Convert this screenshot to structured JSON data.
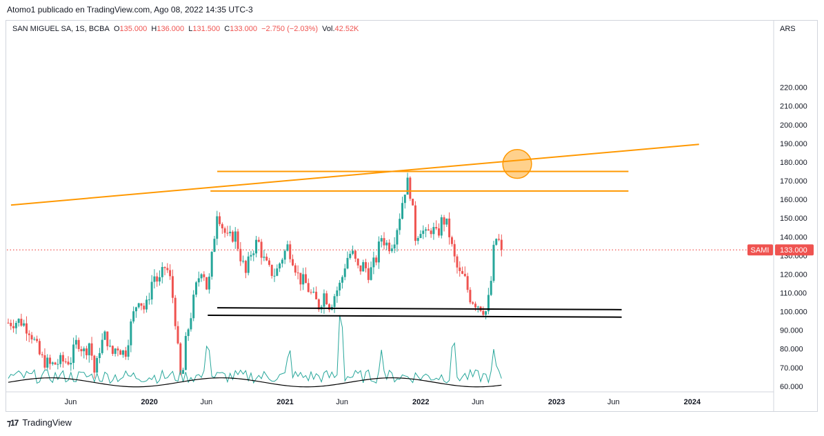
{
  "header": {
    "credit": "Atomo1 publicado en TradingView.com, Ago 08, 2022 14:35 UTC-3"
  },
  "legend": {
    "symbol": "SAN MIGUEL SA, 1S, BCBA",
    "open_label": "O",
    "open": "135.000",
    "high_label": "H",
    "high": "136.000",
    "low_label": "L",
    "low": "131.500",
    "close_label": "C",
    "close": "133.000",
    "change": "−2.750 (−2.03%)",
    "volume_label": "Vol.",
    "volume": "42.52K"
  },
  "footer": {
    "brand": "TradingView"
  },
  "chart_data": {
    "type": "candlestick",
    "currency": "ARS",
    "last_price_tag": {
      "symbol": "SAMI",
      "value": "133.000"
    },
    "ylim": [
      57,
      252
    ],
    "y_ticks": [
      "220.000",
      "210.000",
      "200.000",
      "190.000",
      "180.000",
      "170.000",
      "160.000",
      "150.000",
      "140.000",
      "130.000",
      "120.000",
      "110.000",
      "100.000",
      "90.000",
      "80.000",
      "70.000",
      "60.000"
    ],
    "x_ticks": [
      {
        "label": "Jun",
        "t": 2019.42
      },
      {
        "label": "2020",
        "t": 2020.0
      },
      {
        "label": "Jun",
        "t": 2020.42
      },
      {
        "label": "2021",
        "t": 2021.0
      },
      {
        "label": "Jun",
        "t": 2021.42
      },
      {
        "label": "2022",
        "t": 2022.0
      },
      {
        "label": "Jun",
        "t": 2022.42
      },
      {
        "label": "2023",
        "t": 2023.0
      },
      {
        "label": "Jun",
        "t": 2023.42
      },
      {
        "label": "2024",
        "t": 2024.0
      }
    ],
    "xlim": [
      2018.95,
      2024.6
    ],
    "last_price": 133,
    "price_path": [
      {
        "t": 2018.96,
        "p": 94
      },
      {
        "t": 2019.05,
        "p": 95
      },
      {
        "t": 2019.12,
        "p": 90
      },
      {
        "t": 2019.2,
        "p": 75
      },
      {
        "t": 2019.27,
        "p": 71
      },
      {
        "t": 2019.34,
        "p": 73
      },
      {
        "t": 2019.42,
        "p": 74
      },
      {
        "t": 2019.47,
        "p": 85
      },
      {
        "t": 2019.52,
        "p": 78
      },
      {
        "t": 2019.56,
        "p": 84
      },
      {
        "t": 2019.6,
        "p": 65
      },
      {
        "t": 2019.63,
        "p": 80
      },
      {
        "t": 2019.68,
        "p": 88
      },
      {
        "t": 2019.72,
        "p": 76
      },
      {
        "t": 2019.76,
        "p": 82
      },
      {
        "t": 2019.82,
        "p": 77
      },
      {
        "t": 2019.87,
        "p": 95
      },
      {
        "t": 2019.92,
        "p": 108
      },
      {
        "t": 2019.97,
        "p": 100
      },
      {
        "t": 2020.03,
        "p": 120
      },
      {
        "t": 2020.07,
        "p": 115
      },
      {
        "t": 2020.12,
        "p": 125
      },
      {
        "t": 2020.16,
        "p": 115
      },
      {
        "t": 2020.2,
        "p": 90
      },
      {
        "t": 2020.22,
        "p": 68
      },
      {
        "t": 2020.24,
        "p": 62
      },
      {
        "t": 2020.27,
        "p": 85
      },
      {
        "t": 2020.31,
        "p": 100
      },
      {
        "t": 2020.35,
        "p": 115
      },
      {
        "t": 2020.39,
        "p": 125
      },
      {
        "t": 2020.43,
        "p": 110
      },
      {
        "t": 2020.47,
        "p": 135
      },
      {
        "t": 2020.5,
        "p": 155
      },
      {
        "t": 2020.54,
        "p": 145
      },
      {
        "t": 2020.58,
        "p": 138
      },
      {
        "t": 2020.63,
        "p": 142
      },
      {
        "t": 2020.67,
        "p": 130
      },
      {
        "t": 2020.71,
        "p": 120
      },
      {
        "t": 2020.75,
        "p": 132
      },
      {
        "t": 2020.8,
        "p": 138
      },
      {
        "t": 2020.84,
        "p": 128
      },
      {
        "t": 2020.88,
        "p": 122
      },
      {
        "t": 2020.93,
        "p": 120
      },
      {
        "t": 2020.97,
        "p": 128
      },
      {
        "t": 2021.02,
        "p": 135
      },
      {
        "t": 2021.06,
        "p": 128
      },
      {
        "t": 2021.1,
        "p": 118
      },
      {
        "t": 2021.15,
        "p": 115
      },
      {
        "t": 2021.2,
        "p": 108
      },
      {
        "t": 2021.25,
        "p": 103
      },
      {
        "t": 2021.29,
        "p": 110
      },
      {
        "t": 2021.33,
        "p": 103
      },
      {
        "t": 2021.37,
        "p": 110
      },
      {
        "t": 2021.41,
        "p": 115
      },
      {
        "t": 2021.45,
        "p": 128
      },
      {
        "t": 2021.49,
        "p": 132
      },
      {
        "t": 2021.54,
        "p": 122
      },
      {
        "t": 2021.58,
        "p": 125
      },
      {
        "t": 2021.62,
        "p": 120
      },
      {
        "t": 2021.67,
        "p": 128
      },
      {
        "t": 2021.71,
        "p": 140
      },
      {
        "t": 2021.76,
        "p": 135
      },
      {
        "t": 2021.8,
        "p": 138
      },
      {
        "t": 2021.84,
        "p": 150
      },
      {
        "t": 2021.88,
        "p": 165
      },
      {
        "t": 2021.91,
        "p": 170
      },
      {
        "t": 2021.93,
        "p": 160
      },
      {
        "t": 2021.96,
        "p": 140
      },
      {
        "t": 2022.0,
        "p": 145
      },
      {
        "t": 2022.04,
        "p": 140
      },
      {
        "t": 2022.08,
        "p": 145
      },
      {
        "t": 2022.12,
        "p": 140
      },
      {
        "t": 2022.16,
        "p": 150
      },
      {
        "t": 2022.2,
        "p": 145
      },
      {
        "t": 2022.24,
        "p": 130
      },
      {
        "t": 2022.28,
        "p": 120
      },
      {
        "t": 2022.32,
        "p": 118
      },
      {
        "t": 2022.36,
        "p": 108
      },
      {
        "t": 2022.4,
        "p": 105
      },
      {
        "t": 2022.44,
        "p": 103
      },
      {
        "t": 2022.48,
        "p": 100
      },
      {
        "t": 2022.51,
        "p": 110
      },
      {
        "t": 2022.54,
        "p": 135
      },
      {
        "t": 2022.56,
        "p": 140
      },
      {
        "t": 2022.6,
        "p": 133
      }
    ],
    "volume_peaks": [
      {
        "t": 2020.43,
        "v": 0.55
      },
      {
        "t": 2021.03,
        "v": 0.45
      },
      {
        "t": 2021.41,
        "v": 1.0
      },
      {
        "t": 2021.71,
        "v": 0.35
      },
      {
        "t": 2022.24,
        "v": 0.6
      },
      {
        "t": 2022.54,
        "v": 0.4
      }
    ],
    "annotations": {
      "orange_lines": [
        {
          "from": {
            "t": 2018.98,
            "p": 157
          },
          "to": {
            "t": 2024.05,
            "p": 189.5
          }
        },
        {
          "from": {
            "t": 2020.5,
            "p": 175
          },
          "to": {
            "t": 2023.53,
            "p": 175
          }
        },
        {
          "from": {
            "t": 2020.45,
            "p": 164.5
          },
          "to": {
            "t": 2023.53,
            "p": 164.5
          }
        }
      ],
      "black_lines": [
        {
          "from": {
            "t": 2020.5,
            "p": 102
          },
          "to": {
            "t": 2023.48,
            "p": 101
          }
        },
        {
          "from": {
            "t": 2020.43,
            "p": 98
          },
          "to": {
            "t": 2023.48,
            "p": 97
          }
        }
      ],
      "circle": {
        "t": 2022.71,
        "p": 179,
        "r_price": 7.7
      }
    },
    "colors": {
      "up": "#26a69a",
      "down": "#ef5350",
      "trend": "#ff9800",
      "volume_line": "#26a69a",
      "volume_ma": "#000000",
      "last_price_line": "#ef5350"
    }
  }
}
